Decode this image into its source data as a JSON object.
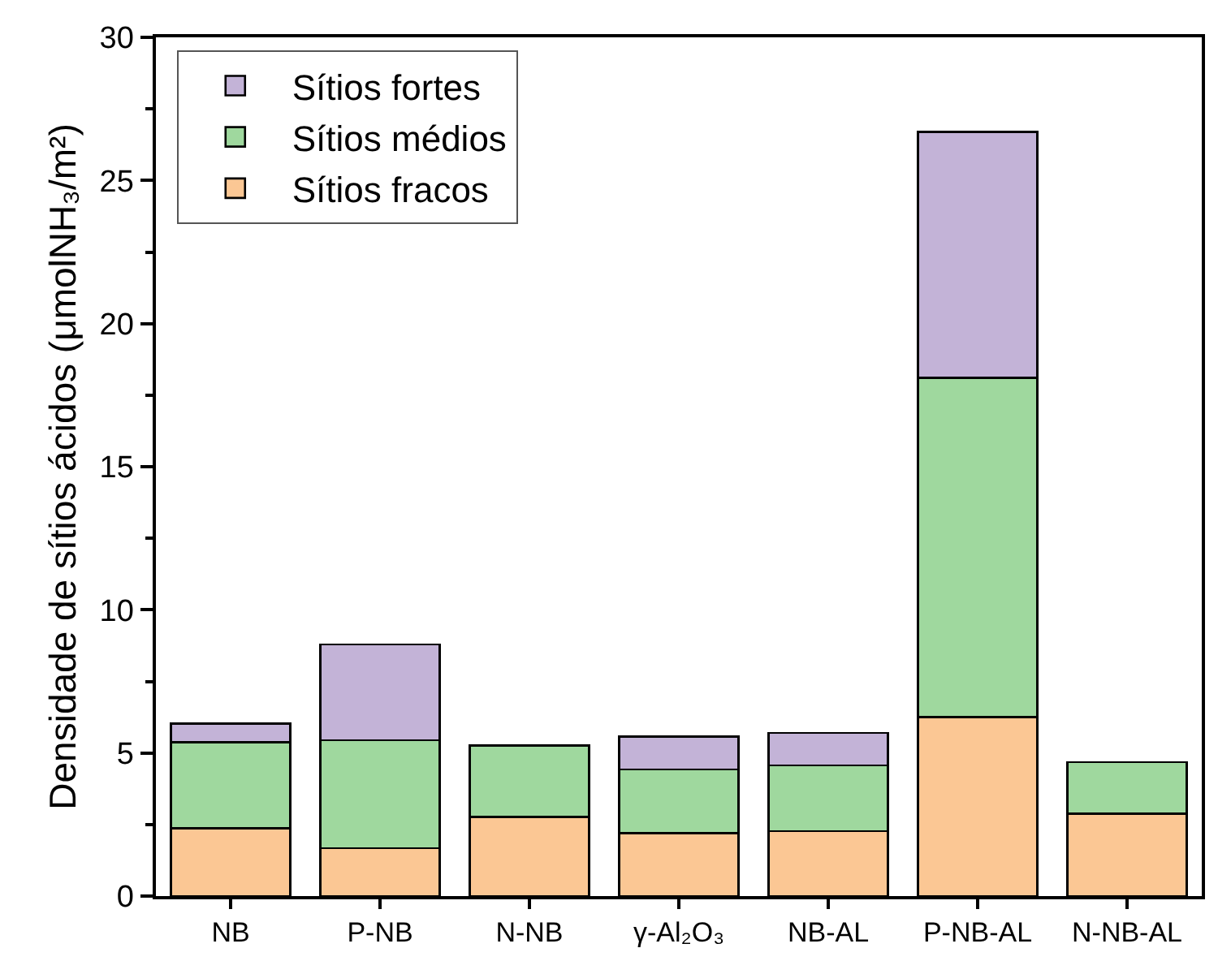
{
  "chart_data": {
    "type": "bar",
    "stacked": true,
    "ylabel": "Densidade de sítios ácidos (μmolNH₃/m²)",
    "categories": [
      "NB",
      "P-NB",
      "N-NB",
      "γ-Al₂O₃",
      "NB-AL",
      "P-NB-AL",
      "N-NB-AL"
    ],
    "series": [
      {
        "name": "Sítios fracos",
        "color": "#fbc794",
        "values": [
          2.37,
          1.67,
          2.77,
          2.2,
          2.27,
          6.25,
          2.87
        ]
      },
      {
        "name": "Sítios médios",
        "color": "#9fd89e",
        "values": [
          3.01,
          3.78,
          2.49,
          2.22,
          2.29,
          11.85,
          1.81
        ]
      },
      {
        "name": "Sítios fortes",
        "color": "#c3b3d7",
        "values": [
          0.65,
          3.34,
          null,
          1.15,
          1.14,
          8.6,
          null
        ]
      }
    ],
    "ylim": [
      0,
      30
    ],
    "yticks": [
      0,
      {
        "value": 2.5,
        "label": null
      },
      5,
      {
        "value": 7.5,
        "label": null
      },
      10,
      {
        "value": 12.5,
        "label": null
      },
      15,
      {
        "value": 17.5,
        "label": null
      },
      20,
      {
        "value": 22.5,
        "label": null
      },
      25,
      {
        "value": 27.5,
        "label": null
      },
      30
    ],
    "grid": false,
    "legend": "top left"
  }
}
